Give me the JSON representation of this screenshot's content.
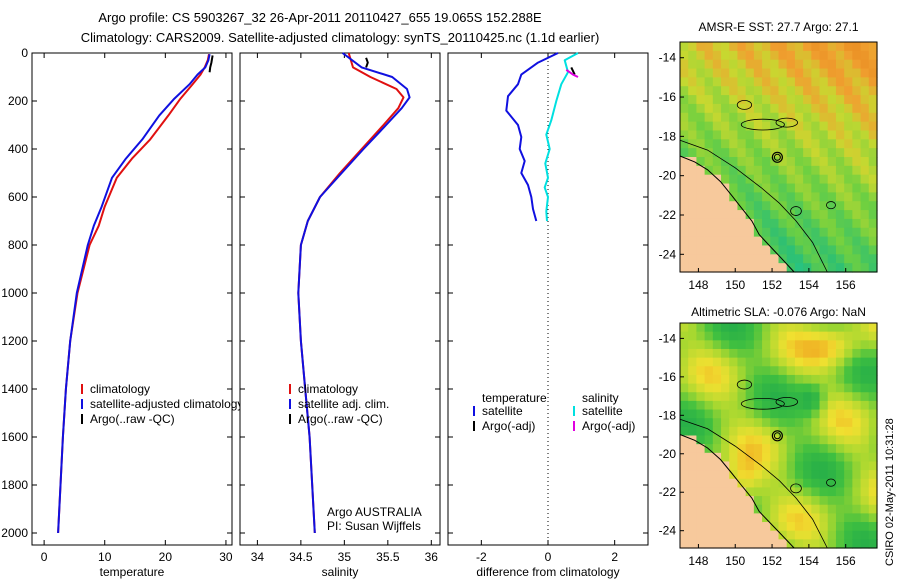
{
  "title_line1": "Argo profile: CS 5903267_32 26-Apr-2011 20110427_655 19.065S 152.288E",
  "title_line2": "Climatology: CARS2009. Satellite-adjusted climatology: synTS_20110425.nc (1.1d earlier)",
  "side_stamp": "CSIRO 02-May-2011 10:31:28",
  "colors": {
    "climatology": "#e01010",
    "satellite": "#1010e0",
    "argo": "#000000",
    "sat_salinity": "#00e0e0",
    "argo_adj_salinity": "#e000e0",
    "land": "#f7c99c"
  },
  "chart_data": [
    {
      "type": "line",
      "xlabel": "temperature",
      "xlim": [
        -2,
        31
      ],
      "ylim": [
        2050,
        0
      ],
      "xticks": [
        0,
        10,
        20,
        30
      ],
      "yticks": [
        0,
        200,
        400,
        600,
        800,
        1000,
        1200,
        1400,
        1600,
        1800,
        2000
      ],
      "legend": {
        "placement": "center",
        "entries": [
          "climatology",
          "satellite-adjusted climatology",
          "Argo(..raw -QC)"
        ]
      },
      "series": [
        {
          "name": "climatology",
          "color": "#e01010",
          "points": [
            [
              27.2,
              5
            ],
            [
              27.0,
              30
            ],
            [
              26.5,
              60
            ],
            [
              25.8,
              90
            ],
            [
              24.5,
              130
            ],
            [
              22.5,
              190
            ],
            [
              20.5,
              260
            ],
            [
              17.5,
              360
            ],
            [
              14.5,
              440
            ],
            [
              12,
              520
            ],
            [
              10,
              640
            ],
            [
              9,
              720
            ],
            [
              7.5,
              800
            ],
            [
              5.5,
              1000
            ],
            [
              4.3,
              1200
            ],
            [
              3.6,
              1400
            ],
            [
              3.1,
              1600
            ],
            [
              2.7,
              1800
            ],
            [
              2.3,
              2000
            ]
          ]
        },
        {
          "name": "satellite-adjusted climatology",
          "color": "#1010e0",
          "points": [
            [
              27.3,
              5
            ],
            [
              27.1,
              30
            ],
            [
              26.6,
              60
            ],
            [
              25.3,
              90
            ],
            [
              24,
              130
            ],
            [
              21.5,
              190
            ],
            [
              19,
              260
            ],
            [
              16.2,
              360
            ],
            [
              13.5,
              440
            ],
            [
              11.2,
              520
            ],
            [
              9.5,
              640
            ],
            [
              8.2,
              720
            ],
            [
              7.2,
              800
            ],
            [
              5.4,
              1000
            ],
            [
              4.3,
              1200
            ],
            [
              3.6,
              1400
            ],
            [
              3.1,
              1600
            ],
            [
              2.7,
              1800
            ],
            [
              2.3,
              2000
            ]
          ]
        },
        {
          "name": "Argo(..raw -QC)",
          "color": "#000000",
          "points": [
            [
              27.8,
              10
            ],
            [
              27.6,
              40
            ],
            [
              27.4,
              60
            ],
            [
              27.3,
              80
            ]
          ]
        }
      ]
    },
    {
      "type": "line",
      "xlabel": "salinity",
      "xlim": [
        33.8,
        36.1
      ],
      "ylim": [
        2050,
        0
      ],
      "xticks": [
        34,
        34.5,
        35,
        35.5,
        36
      ],
      "yticks": [
        0,
        200,
        400,
        600,
        800,
        1000,
        1200,
        1400,
        1600,
        1800,
        2000
      ],
      "legend": {
        "placement": "center",
        "entries": [
          "climatology",
          "satellite adj. clim.",
          "Argo(..raw -QC)"
        ]
      },
      "annotation": [
        "Argo AUSTRALIA",
        "PI: Susan Wijffels"
      ],
      "series": [
        {
          "name": "climatology",
          "color": "#e01010",
          "points": [
            [
              35.05,
              0
            ],
            [
              35.1,
              60
            ],
            [
              35.3,
              100
            ],
            [
              35.6,
              150
            ],
            [
              35.68,
              185
            ],
            [
              35.62,
              230
            ],
            [
              35.45,
              300
            ],
            [
              35.2,
              400
            ],
            [
              34.95,
              500
            ],
            [
              34.72,
              600
            ],
            [
              34.58,
              700
            ],
            [
              34.5,
              800
            ],
            [
              34.47,
              1000
            ],
            [
              34.5,
              1200
            ],
            [
              34.55,
              1400
            ],
            [
              34.6,
              1600
            ],
            [
              34.63,
              1800
            ],
            [
              34.66,
              2000
            ]
          ]
        },
        {
          "name": "satellite adj. clim.",
          "color": "#1010e0",
          "points": [
            [
              34.98,
              0
            ],
            [
              35.2,
              60
            ],
            [
              35.55,
              100
            ],
            [
              35.72,
              150
            ],
            [
              35.75,
              185
            ],
            [
              35.66,
              230
            ],
            [
              35.48,
              300
            ],
            [
              35.22,
              400
            ],
            [
              34.97,
              500
            ],
            [
              34.72,
              600
            ],
            [
              34.58,
              700
            ],
            [
              34.5,
              800
            ],
            [
              34.47,
              1000
            ],
            [
              34.5,
              1200
            ],
            [
              34.55,
              1400
            ],
            [
              34.6,
              1600
            ],
            [
              34.63,
              1800
            ],
            [
              34.66,
              2000
            ]
          ]
        },
        {
          "name": "Argo(..raw -QC)",
          "color": "#000000",
          "points": [
            [
              35.25,
              20
            ],
            [
              35.27,
              40
            ],
            [
              35.25,
              60
            ]
          ]
        }
      ]
    },
    {
      "type": "line",
      "xlabel": "difference from climatology",
      "xlim": [
        -3,
        3
      ],
      "ylim": [
        2050,
        0
      ],
      "xticks": [
        -2,
        0,
        2
      ],
      "yticks": [
        0,
        200,
        400,
        600,
        800,
        1000,
        1200,
        1400,
        1600,
        1800,
        2000
      ],
      "legend": {
        "placement": "center",
        "entries": [
          "temperature satellite",
          "temperature Argo(-adj)",
          "salinity satellite",
          "salinity Argo(-adj)"
        ],
        "headers": [
          "temperature",
          "salinity"
        ],
        "labels": [
          "satellite",
          "Argo(-adj)",
          "satellite",
          "Argo(-adj)"
        ]
      },
      "series": [
        {
          "name": "temperature satellite",
          "color": "#1010e0",
          "points": [
            [
              0.3,
              0
            ],
            [
              -0.3,
              40
            ],
            [
              -0.8,
              90
            ],
            [
              -0.9,
              130
            ],
            [
              -1.2,
              180
            ],
            [
              -1.25,
              240
            ],
            [
              -0.9,
              300
            ],
            [
              -0.8,
              350
            ],
            [
              -0.85,
              400
            ],
            [
              -0.7,
              450
            ],
            [
              -0.8,
              500
            ],
            [
              -0.6,
              550
            ],
            [
              -0.5,
              600
            ],
            [
              -0.45,
              650
            ],
            [
              -0.35,
              700
            ]
          ]
        },
        {
          "name": "temperature Argo(-adj)",
          "color": "#000000",
          "points": [
            [
              0.7,
              60
            ],
            [
              0.8,
              90
            ]
          ]
        },
        {
          "name": "salinity satellite",
          "color": "#00e0e0",
          "points": [
            [
              0.9,
              0
            ],
            [
              0.5,
              30
            ],
            [
              0.6,
              80
            ],
            [
              0.4,
              130
            ],
            [
              0.25,
              200
            ],
            [
              0.1,
              280
            ],
            [
              -0.05,
              340
            ],
            [
              0.05,
              400
            ],
            [
              -0.08,
              460
            ],
            [
              0.0,
              520
            ],
            [
              -0.1,
              560
            ],
            [
              0.0,
              600
            ],
            [
              -0.05,
              660
            ],
            [
              -0.03,
              700
            ]
          ]
        },
        {
          "name": "salinity Argo(-adj)",
          "color": "#e000e0",
          "points": [
            [
              0.55,
              70
            ],
            [
              0.75,
              90
            ],
            [
              0.9,
              100
            ]
          ]
        }
      ]
    },
    {
      "type": "heatmap",
      "title": "AMSR-E SST: 27.7 Argo: 27.1",
      "xlim": [
        147,
        157.7
      ],
      "ylim": [
        -24.9,
        -13.2
      ],
      "xticks": [
        148,
        150,
        152,
        154,
        156
      ],
      "yticks": [
        -14,
        -16,
        -18,
        -20,
        -22,
        -24
      ],
      "argo_location": [
        152.288,
        -19.065
      ]
    },
    {
      "type": "heatmap",
      "title": "Altimetric SLA: -0.076 Argo: NaN",
      "xlim": [
        147,
        157.7
      ],
      "ylim": [
        -24.9,
        -13.2
      ],
      "xticks": [
        148,
        150,
        152,
        154,
        156
      ],
      "yticks": [
        -14,
        -16,
        -18,
        -20,
        -22,
        -24
      ],
      "argo_location": [
        152.288,
        -19.065
      ]
    }
  ]
}
